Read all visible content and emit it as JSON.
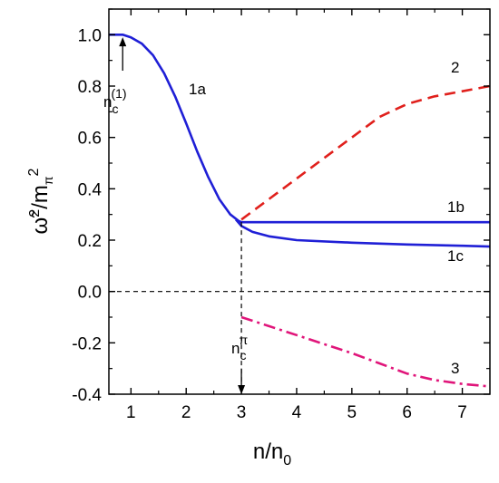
{
  "chart_data": {
    "type": "line",
    "xlabel": {
      "main": "n/n",
      "sub": "0"
    },
    "ylabel": {
      "main": "ω̃",
      "sup": "2",
      "mid": "/m",
      "sub": "π",
      "sup2": "2"
    },
    "xlim": [
      0.6,
      7.5
    ],
    "ylim": [
      -0.4,
      1.1
    ],
    "x_ticks": [
      1,
      2,
      3,
      4,
      5,
      6,
      7
    ],
    "x_tick_labels": [
      "1",
      "2",
      "3",
      "4",
      "5",
      "6",
      "7"
    ],
    "y_ticks": [
      -0.4,
      -0.2,
      0.0,
      0.2,
      0.4,
      0.6,
      0.8,
      1.0
    ],
    "y_tick_labels": [
      "-0.4",
      "-0.2",
      "0.0",
      "0.2",
      "0.4",
      "0.6",
      "0.8",
      "1.0"
    ],
    "grid": false,
    "series": [
      {
        "name": "1a",
        "color": "#1f1fd6",
        "style": "solid",
        "x": [
          0.6,
          0.85,
          1.0,
          1.2,
          1.4,
          1.6,
          1.8,
          2.0,
          2.2,
          2.4,
          2.6,
          2.8,
          2.95,
          3.0
        ],
        "y": [
          1.0,
          1.0,
          0.99,
          0.965,
          0.92,
          0.85,
          0.76,
          0.655,
          0.545,
          0.445,
          0.36,
          0.3,
          0.275,
          0.27
        ]
      },
      {
        "name": "1b",
        "color": "#1f1fd6",
        "style": "solid",
        "x": [
          3.0,
          7.5
        ],
        "y": [
          0.27,
          0.27
        ]
      },
      {
        "name": "1c",
        "color": "#1f1fd6",
        "style": "solid",
        "x": [
          2.9,
          3.0,
          3.2,
          3.5,
          4.0,
          5.0,
          6.0,
          7.0,
          7.5
        ],
        "y": [
          0.28,
          0.255,
          0.232,
          0.215,
          0.2,
          0.19,
          0.183,
          0.178,
          0.175
        ]
      },
      {
        "name": "2",
        "color": "#e0201c",
        "style": "dashed",
        "x": [
          3.0,
          3.5,
          4.0,
          4.5,
          5.0,
          5.5,
          6.0,
          6.5,
          7.0,
          7.5
        ],
        "y": [
          0.28,
          0.36,
          0.44,
          0.52,
          0.6,
          0.68,
          0.73,
          0.76,
          0.78,
          0.8
        ]
      },
      {
        "name": "3",
        "color": "#e0157a",
        "style": "dashdot",
        "x": [
          3.0,
          3.5,
          4.0,
          4.5,
          5.0,
          5.5,
          6.0,
          6.5,
          7.0,
          7.5
        ],
        "y": [
          -0.1,
          -0.135,
          -0.17,
          -0.205,
          -0.24,
          -0.28,
          -0.32,
          -0.345,
          -0.36,
          -0.37
        ]
      }
    ],
    "reference_lines": [
      {
        "kind": "horizontal",
        "y": 0.0,
        "style": "dashed"
      },
      {
        "kind": "vertical",
        "x": 3.0,
        "y_from": 0.27,
        "y_to": -0.4,
        "style": "dashed"
      }
    ],
    "annotations": [
      {
        "main": "n",
        "sub": "c",
        "sup": "(1)",
        "arrow_x": 0.85,
        "arrow_y_from": 0.86,
        "arrow_y_to": 0.99
      },
      {
        "main": "n",
        "sub": "c",
        "sup": "π",
        "arrow_x": 3.0,
        "arrow_y_from": -0.3,
        "arrow_y_to": -0.4
      }
    ]
  }
}
